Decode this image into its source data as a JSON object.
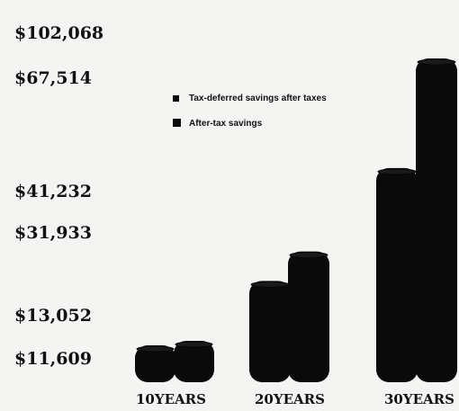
{
  "chart_data": {
    "type": "bar",
    "categories": [
      "10 YEARS",
      "20 YEARS",
      "30 YEARS"
    ],
    "series": [
      {
        "name": "Tax-deferred savings after taxes",
        "values": [
          11609,
          31933,
          67514
        ]
      },
      {
        "name": "After-tax savings",
        "values": [
          13052,
          41232,
          102068
        ]
      }
    ],
    "y_tick_labels": [
      "$102,068",
      "$67,514",
      "$41,232",
      "$31,933",
      "$13,052",
      "$11,609"
    ],
    "x_tick_labels": [
      "10YEARS",
      "20YEARS",
      "30YEARS"
    ],
    "legend": [
      "Tax-deferred savings after taxes",
      "After-tax savings"
    ],
    "legend_placement": "top-center",
    "grid": false,
    "colors": {
      "bar": "#0a0a0a",
      "background": "#f4f4f2",
      "text": "#111111"
    }
  }
}
